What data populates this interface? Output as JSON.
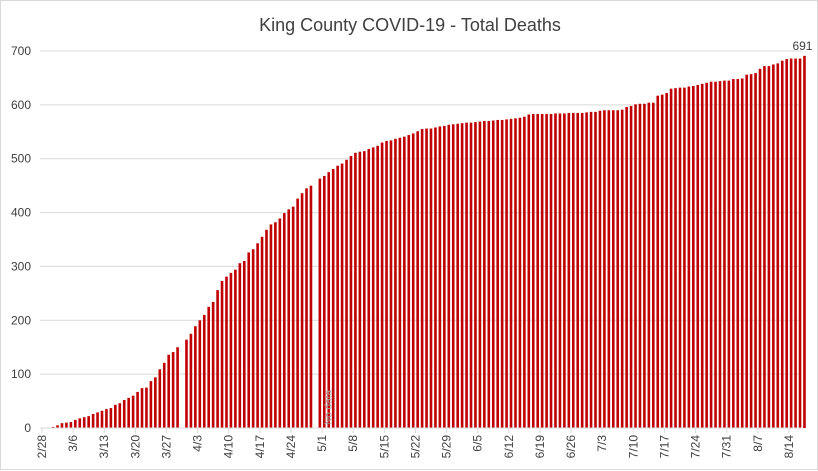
{
  "chart_data": {
    "type": "bar",
    "title": "King County COVID-19 - Total Deaths",
    "xlabel": "",
    "ylabel": "",
    "ylim": [
      0,
      700
    ],
    "yticks": [
      0,
      100,
      200,
      300,
      400,
      500,
      600,
      700
    ],
    "grid": true,
    "legend": "none",
    "bar_color": "#C00000",
    "start_date": "2/28",
    "xtick_labels": [
      "2/28",
      "3/6",
      "3/13",
      "3/20",
      "3/27",
      "4/3",
      "4/10",
      "4/17",
      "4/24",
      "5/1",
      "5/8",
      "5/15",
      "5/22",
      "5/29",
      "6/5",
      "6/12",
      "6/19",
      "6/26",
      "7/3",
      "7/10",
      "7/17",
      "7/24",
      "7/31",
      "8/7",
      "8/14"
    ],
    "annotations": [
      {
        "text": "No data",
        "date": "5/2"
      },
      {
        "text": "691",
        "date": "8/17"
      }
    ],
    "series": [
      {
        "name": "Total Deaths",
        "dates": [
          "2/28",
          "2/29",
          "3/1",
          "3/2",
          "3/3",
          "3/4",
          "3/5",
          "3/6",
          "3/7",
          "3/8",
          "3/9",
          "3/10",
          "3/11",
          "3/12",
          "3/13",
          "3/14",
          "3/15",
          "3/16",
          "3/17",
          "3/18",
          "3/19",
          "3/20",
          "3/21",
          "3/22",
          "3/23",
          "3/24",
          "3/25",
          "3/26",
          "3/27",
          "3/28",
          "3/29",
          "3/30",
          "3/31",
          "4/1",
          "4/2",
          "4/3",
          "4/4",
          "4/5",
          "4/6",
          "4/7",
          "4/8",
          "4/9",
          "4/10",
          "4/11",
          "4/12",
          "4/13",
          "4/14",
          "4/15",
          "4/16",
          "4/17",
          "4/18",
          "4/19",
          "4/20",
          "4/21",
          "4/22",
          "4/23",
          "4/24",
          "4/25",
          "4/26",
          "4/27",
          "4/28",
          "4/29",
          "4/30",
          "5/1",
          "5/2",
          "5/3",
          "5/4",
          "5/5",
          "5/6",
          "5/7",
          "5/8",
          "5/9",
          "5/10",
          "5/11",
          "5/12",
          "5/13",
          "5/14",
          "5/15",
          "5/16",
          "5/17",
          "5/18",
          "5/19",
          "5/20",
          "5/21",
          "5/22",
          "5/23",
          "5/24",
          "5/25",
          "5/26",
          "5/27",
          "5/28",
          "5/29",
          "5/30",
          "5/31",
          "6/1",
          "6/2",
          "6/3",
          "6/4",
          "6/5",
          "6/6",
          "6/7",
          "6/8",
          "6/9",
          "6/10",
          "6/11",
          "6/12",
          "6/13",
          "6/14",
          "6/15",
          "6/16",
          "6/17",
          "6/18",
          "6/19",
          "6/20",
          "6/21",
          "6/22",
          "6/23",
          "6/24",
          "6/25",
          "6/26",
          "6/27",
          "6/28",
          "6/29",
          "6/30",
          "7/1",
          "7/2",
          "7/3",
          "7/4",
          "7/5",
          "7/6",
          "7/7",
          "7/8",
          "7/9",
          "7/10",
          "7/11",
          "7/12",
          "7/13",
          "7/14",
          "7/15",
          "7/16",
          "7/17",
          "7/18",
          "7/19",
          "7/20",
          "7/21",
          "7/22",
          "7/23",
          "7/24",
          "7/25",
          "7/26",
          "7/27",
          "7/28",
          "7/29",
          "7/30",
          "7/31",
          "8/1",
          "8/2",
          "8/3",
          "8/4",
          "8/5",
          "8/6",
          "8/7",
          "8/8",
          "8/9",
          "8/10",
          "8/11",
          "8/12",
          "8/13",
          "8/14",
          "8/15",
          "8/16",
          "8/17"
        ],
        "values": [
          0,
          1,
          2,
          5,
          9,
          10,
          11,
          15,
          18,
          20,
          22,
          26,
          29,
          32,
          35,
          37,
          43,
          46,
          52,
          56,
          60,
          67,
          74,
          75,
          87,
          94,
          109,
          121,
          136,
          141,
          150,
          null,
          164,
          175,
          189,
          200,
          210,
          225,
          234,
          256,
          273,
          281,
          288,
          294,
          306,
          310,
          326,
          332,
          343,
          355,
          368,
          378,
          382,
          389,
          399,
          406,
          411,
          426,
          436,
          445,
          450,
          null,
          463,
          468,
          475,
          481,
          487,
          491,
          498,
          505,
          511,
          513,
          514,
          518,
          521,
          524,
          530,
          533,
          534,
          537,
          539,
          541,
          544,
          547,
          551,
          555,
          556,
          556,
          558,
          560,
          561,
          563,
          564,
          565,
          566,
          567,
          567,
          568,
          569,
          570,
          570,
          571,
          572,
          572,
          573,
          574,
          575,
          576,
          578,
          582,
          583,
          583,
          583,
          583,
          583,
          584,
          584,
          584,
          585,
          585,
          585,
          585,
          586,
          587,
          587,
          589,
          590,
          590,
          590,
          590,
          591,
          596,
          598,
          601,
          602,
          602,
          604,
          604,
          617,
          619,
          622,
          630,
          631,
          632,
          632,
          634,
          635,
          637,
          639,
          641,
          643,
          643,
          644,
          645,
          645,
          648,
          648,
          649,
          656,
          657,
          659,
          667,
          672,
          672,
          675,
          677,
          682,
          685,
          686,
          686,
          686,
          691
        ],
        "null_note": "3/30 bar missing; 5/2 labeled No data"
      }
    ]
  }
}
